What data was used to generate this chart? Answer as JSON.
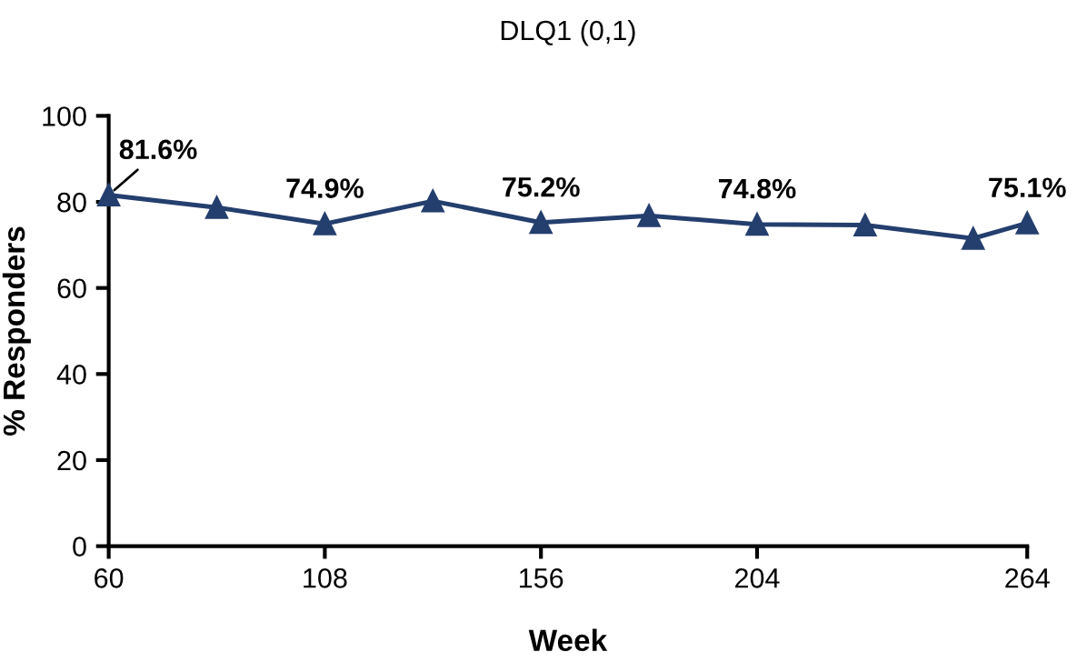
{
  "chart_data": {
    "type": "line",
    "title": "DLQ1 (0,1)",
    "xlabel": "Week",
    "ylabel": "% Responders",
    "x": [
      60,
      84,
      108,
      132,
      156,
      180,
      204,
      228,
      252,
      264
    ],
    "series": [
      {
        "color": "#243f6e",
        "values": [
          81.6,
          78.7,
          74.9,
          80.2,
          75.2,
          76.8,
          74.8,
          74.6,
          71.5,
          75.1
        ],
        "value_labels": [
          "81.6%",
          null,
          "74.9%",
          null,
          "75.2%",
          null,
          "74.8%",
          null,
          null,
          "75.1%"
        ]
      }
    ],
    "xlim": [
      60,
      264
    ],
    "xticks": [
      60,
      108,
      156,
      204,
      264
    ],
    "ylim": [
      0,
      100
    ],
    "yticks": [
      0,
      20,
      40,
      60,
      80,
      100
    ],
    "marker": "triangle",
    "line_style": "solid",
    "grid": false,
    "legend": false
  }
}
